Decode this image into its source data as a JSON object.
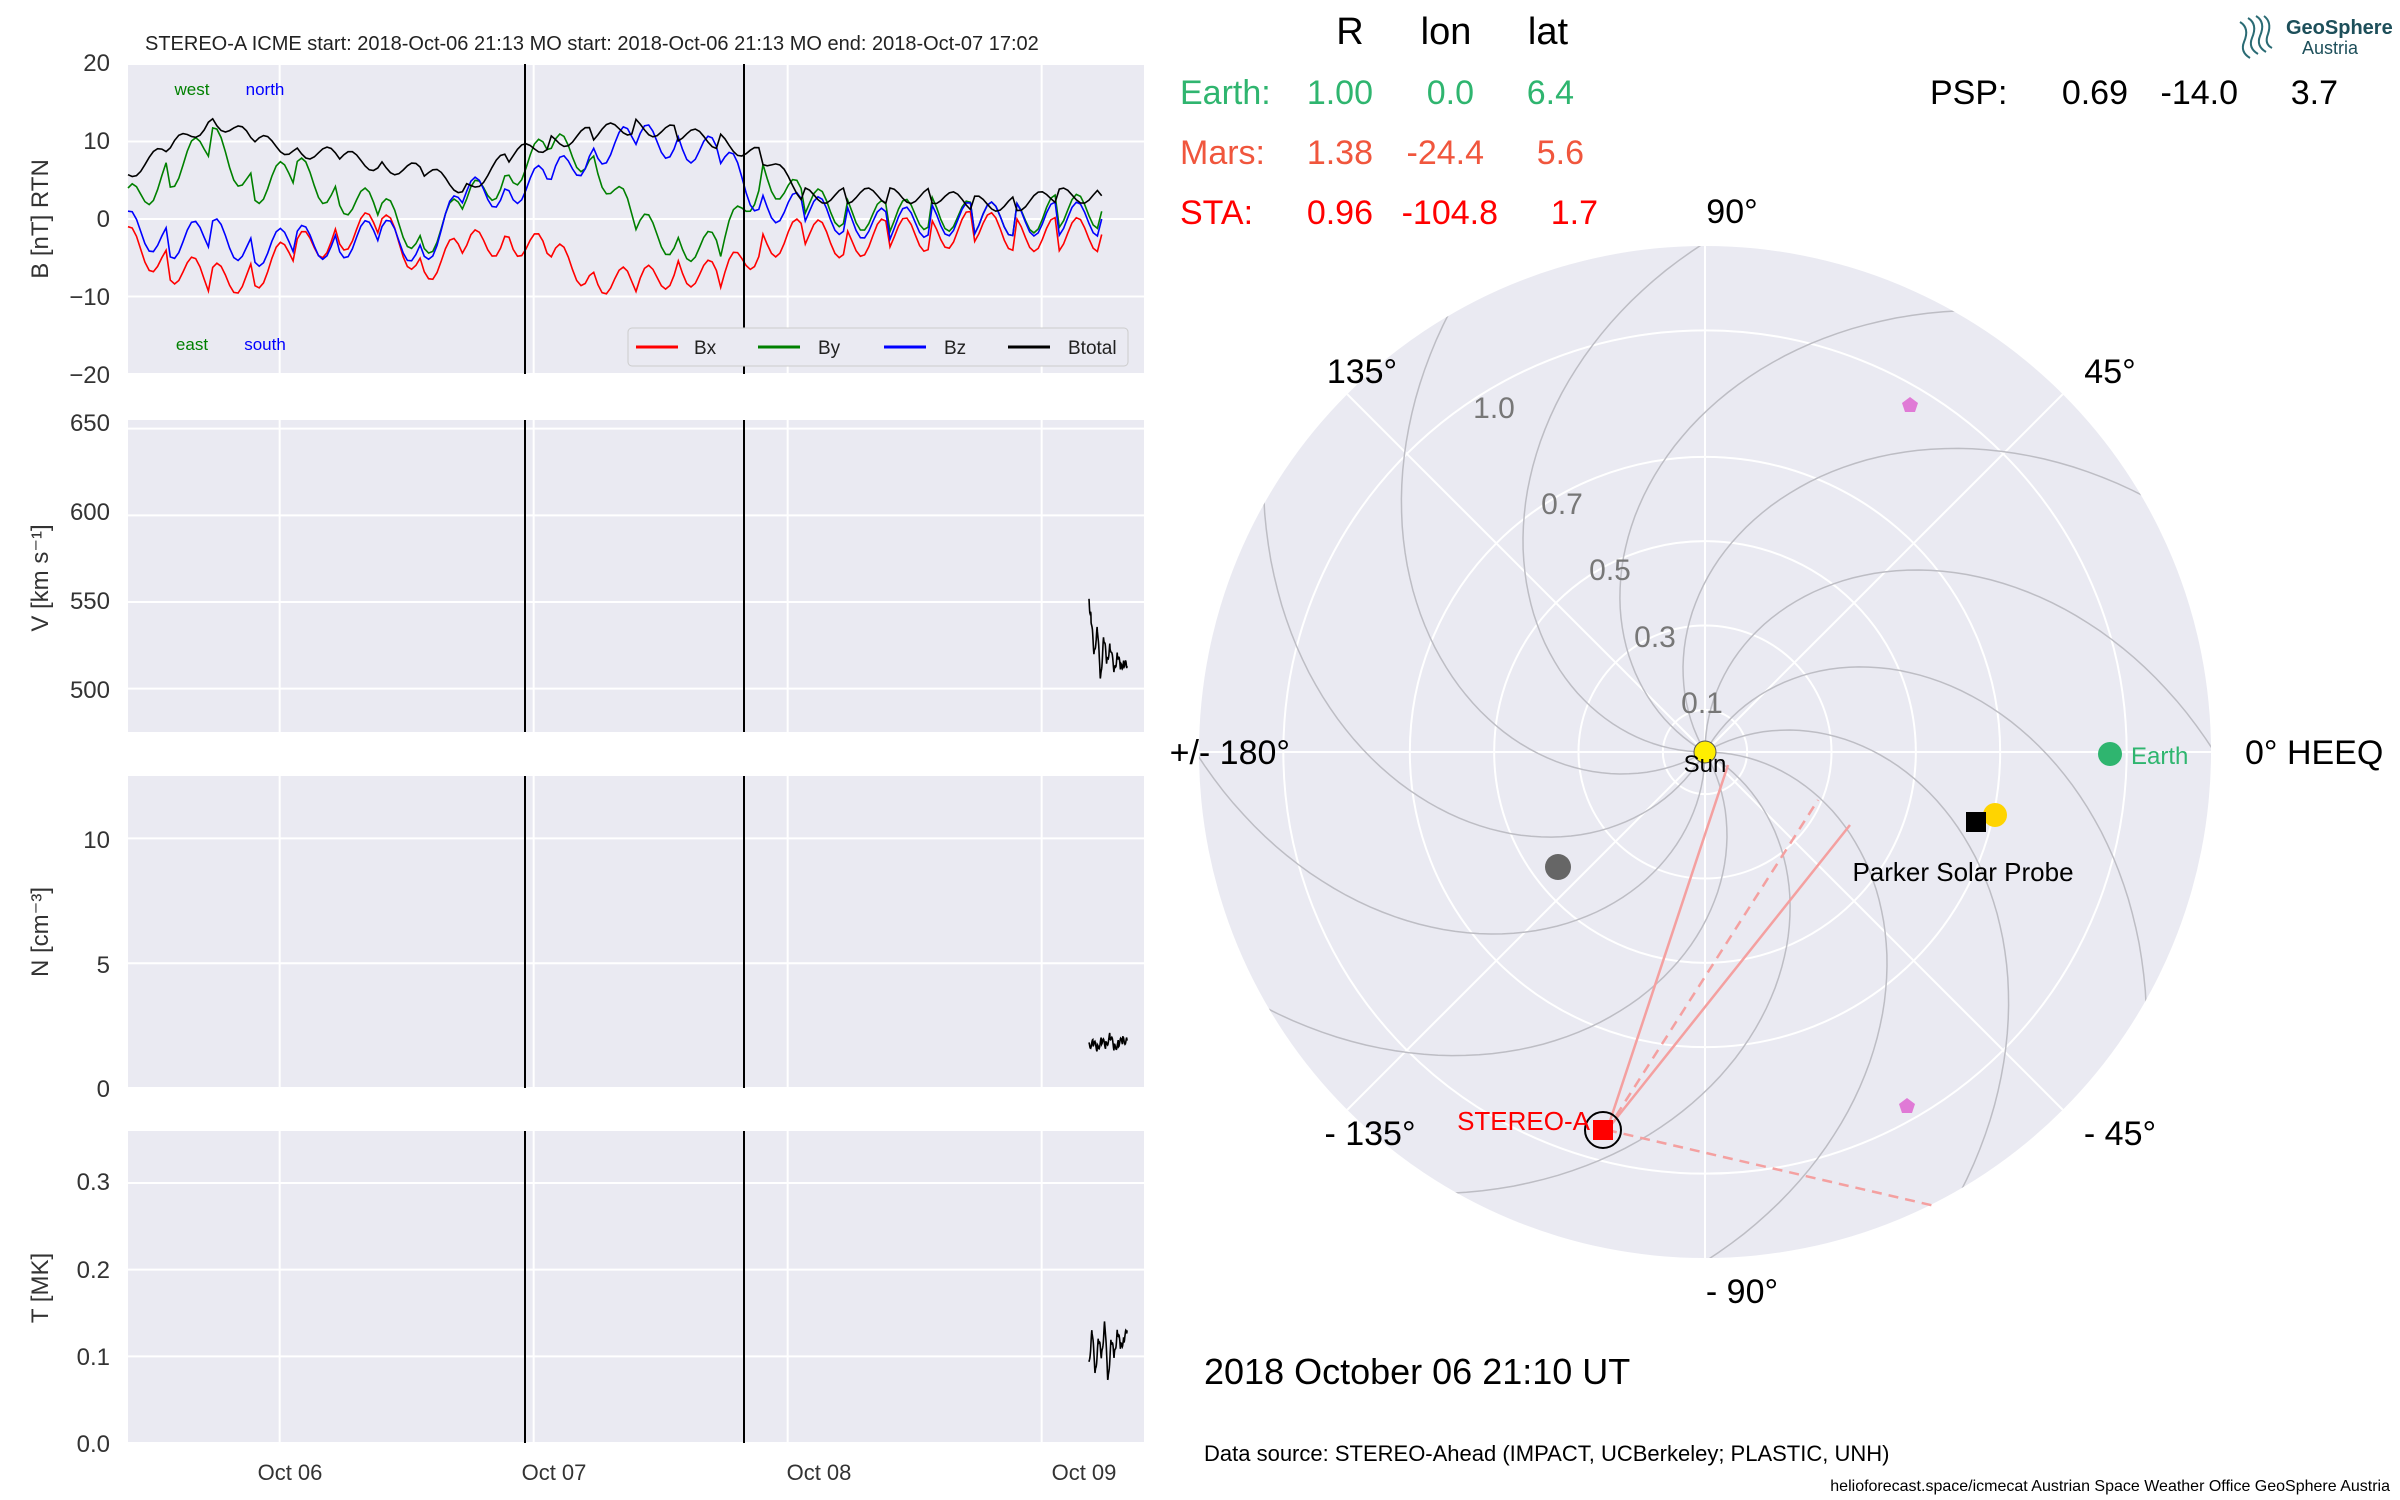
{
  "header": {
    "text": "STEREO-A    ICME start: 2018-Oct-06 21:13   MO start: 2018-Oct-06 21:13   MO end: 2018-Oct-07 17:02"
  },
  "colors": {
    "bx": "#ff0000",
    "by": "#008000",
    "bz": "#0000ff",
    "btotal": "#000000",
    "earth": "#2fb56f",
    "mars": "#f0563d",
    "sta": "#ff0000",
    "panel_bg": "#eaeaf2",
    "grid": "#ffffff",
    "event_line": "#000000",
    "solo": "#e07ad6",
    "bepi": "#666666",
    "psp_sun": "#ffd400"
  },
  "corner_labels": {
    "west": "west",
    "north": "north",
    "east": "east",
    "south": "south"
  },
  "chart_data": [
    {
      "type": "line",
      "panel": "magnetic-field",
      "ylabel": "B [nT] RTN",
      "ylim": [
        -20,
        20
      ],
      "yticks": [
        "20",
        "10",
        "0",
        "−10",
        "−20"
      ],
      "xticks": [
        "Oct 06",
        "Oct 07",
        "Oct 08",
        "Oct 09"
      ],
      "legend": [
        "Bx",
        "By",
        "Bz",
        "Btotal"
      ],
      "legend_placement": "lower-right",
      "event_lines": [
        "2018-10-06 21:13",
        "2018-10-07 17:02"
      ],
      "x_hours_from": "2018-10-05 09:40",
      "series": [
        {
          "name": "Bx",
          "color": "#ff0000",
          "x": [
            0,
            4,
            8,
            12,
            16,
            20,
            24,
            28,
            32,
            36,
            40,
            44,
            48,
            52,
            56,
            60,
            64,
            68,
            72,
            76,
            80,
            84,
            88,
            92
          ],
          "y": [
            -3,
            -6,
            -8,
            -7,
            -4,
            -2,
            -1,
            -6,
            -4,
            -2,
            -5,
            -7,
            -9,
            -6,
            -8,
            -3,
            -2,
            -3,
            -2,
            -2,
            -1,
            -2,
            -2,
            -2
          ]
        },
        {
          "name": "By",
          "color": "#008000",
          "x": [
            0,
            4,
            8,
            12,
            16,
            20,
            24,
            28,
            32,
            36,
            40,
            44,
            48,
            52,
            56,
            60,
            64,
            68,
            72,
            76,
            80,
            84,
            88,
            92
          ],
          "y": [
            2,
            6,
            10,
            4,
            6,
            3,
            1,
            -3,
            2,
            6,
            9,
            8,
            -1,
            -3,
            -4,
            6,
            2,
            1,
            0,
            1,
            0,
            0,
            1,
            1
          ]
        },
        {
          "name": "Bz",
          "color": "#0000ff",
          "x": [
            0,
            4,
            8,
            12,
            16,
            20,
            24,
            28,
            32,
            36,
            40,
            44,
            48,
            52,
            56,
            60,
            64,
            68,
            72,
            76,
            80,
            84,
            88,
            92
          ],
          "y": [
            -1,
            -3,
            -2,
            -4,
            -3,
            -3,
            -2,
            -4,
            3,
            4,
            5,
            9,
            10,
            10,
            8,
            2,
            1,
            0,
            -1,
            0,
            0,
            0,
            0,
            0
          ]
        },
        {
          "name": "Btotal",
          "color": "#000000",
          "x": [
            0,
            4,
            8,
            12,
            16,
            20,
            24,
            28,
            32,
            36,
            40,
            44,
            48,
            52,
            56,
            60,
            64,
            68,
            72,
            76,
            80,
            84,
            88,
            92
          ],
          "y": [
            6,
            9,
            13,
            10,
            9,
            8,
            7,
            6,
            4,
            8,
            10,
            11,
            12,
            11,
            10,
            8,
            3,
            3,
            3,
            3,
            2,
            2,
            3,
            3
          ]
        }
      ]
    },
    {
      "type": "line",
      "panel": "velocity",
      "ylabel": "V [km s⁻¹]",
      "ylim": [
        475,
        655
      ],
      "yticks": [
        "650",
        "600",
        "550",
        "500"
      ],
      "xticks": [
        "Oct 06",
        "Oct 07",
        "Oct 08",
        "Oct 09"
      ],
      "series": [
        {
          "name": "V",
          "color": "#000000",
          "x": [
            90.8,
            91.0,
            91.3,
            91.6,
            91.9,
            92.2,
            92.5,
            92.8,
            93.2,
            93.5,
            93.8,
            94.1,
            94.4
          ],
          "y": [
            550,
            540,
            520,
            535,
            505,
            530,
            515,
            525,
            510,
            520,
            512,
            515,
            513
          ]
        }
      ]
    },
    {
      "type": "line",
      "panel": "density",
      "ylabel": "N [cm⁻³]",
      "ylim": [
        0,
        12.5
      ],
      "yticks": [
        "10",
        "5",
        "0"
      ],
      "xticks": [
        "Oct 06",
        "Oct 07",
        "Oct 08",
        "Oct 09"
      ],
      "series": [
        {
          "name": "N",
          "color": "#000000",
          "x": [
            90.8,
            91.2,
            91.6,
            92.0,
            92.4,
            92.8,
            93.2,
            93.6,
            94.0,
            94.4
          ],
          "y": [
            1.7,
            1.8,
            1.6,
            1.9,
            1.7,
            2.1,
            1.6,
            1.8,
            1.9,
            1.9
          ]
        }
      ]
    },
    {
      "type": "line",
      "panel": "temperature",
      "ylabel": "T [MK]",
      "ylim": [
        0,
        0.36
      ],
      "yticks": [
        "0.3",
        "0.2",
        "0.1",
        "0.0"
      ],
      "xticks": [
        "Oct 06",
        "Oct 07",
        "Oct 08",
        "Oct 09"
      ],
      "series": [
        {
          "name": "T",
          "color": "#000000",
          "x": [
            90.8,
            91.1,
            91.4,
            91.7,
            92.0,
            92.3,
            92.6,
            92.9,
            93.2,
            93.5,
            93.8,
            94.1,
            94.4
          ],
          "y": [
            0.09,
            0.13,
            0.08,
            0.12,
            0.1,
            0.14,
            0.07,
            0.12,
            0.1,
            0.13,
            0.11,
            0.12,
            0.13
          ]
        }
      ]
    },
    {
      "type": "scatter",
      "panel": "polar-positions",
      "projection": "polar",
      "angle_labels": [
        "90°",
        "45°",
        "0° HEEQ",
        "- 45°",
        "- 90°",
        "- 135°",
        "+/- 180°",
        "135°"
      ],
      "radial_labels": [
        "1.0",
        "0.7",
        "0.5",
        "0.3",
        "0.1"
      ],
      "radial_ticks_au": [
        1.0,
        0.7,
        0.5,
        0.3,
        0.1
      ],
      "points": [
        {
          "name": "Earth",
          "lon": 0.0,
          "r": 1.0
        },
        {
          "name": "Parker Solar Probe",
          "lon": -14.0,
          "r": 0.69
        },
        {
          "name": "STEREO-A",
          "lon": -104.8,
          "r": 0.96
        }
      ],
      "table": {
        "headers": [
          "R",
          "lon",
          "lat"
        ],
        "rows": [
          {
            "name": "Earth:",
            "R": "1.00",
            "lon": "0.0",
            "lat": "6.4",
            "color": "#2fb56f"
          },
          {
            "name": "Mars:",
            "R": "1.38",
            "lon": "-24.4",
            "lat": "5.6",
            "color": "#f0563d"
          },
          {
            "name": "STA:",
            "R": "0.96",
            "lon": "-104.8",
            "lat": "1.7",
            "color": "#ff0000"
          }
        ],
        "psp": {
          "name": "PSP:",
          "R": "0.69",
          "lon": "-14.0",
          "lat": "3.7"
        }
      },
      "labels": {
        "sun": "Sun",
        "earth": "Earth",
        "psp": "Parker Solar Probe",
        "sta": "STEREO-A"
      }
    }
  ],
  "footer": {
    "timestamp": "2018 October 06  21:10 UT",
    "datasource": "Data source: STEREO-Ahead (IMPACT, UCBerkeley; PLASTIC, UNH)",
    "credits": "helioforecast.space/icmecat   Austrian Space Weather Office   GeoSphere Austria"
  },
  "logo": {
    "line1": "GeoSphere",
    "line2": "Austria"
  }
}
